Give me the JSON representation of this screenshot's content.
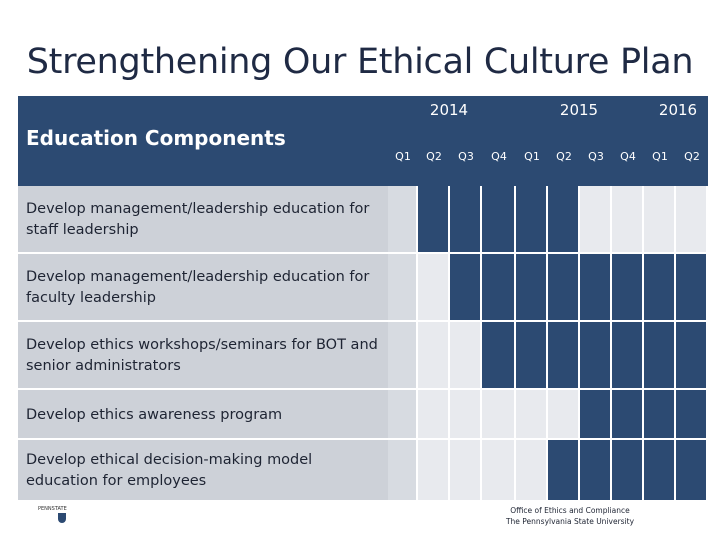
{
  "title": "Strengthening Our Ethical Culture Plan",
  "table": {
    "header_label": "Education Components",
    "years": [
      "2014",
      "2015",
      "2016"
    ],
    "quarters": [
      "Q1",
      "Q2",
      "Q3",
      "Q4",
      "Q1",
      "Q2",
      "Q3",
      "Q4",
      "Q1",
      "Q2"
    ],
    "rows": [
      {
        "label": "Develop management/leadership education for staff leadership",
        "active": [
          false,
          true,
          true,
          true,
          true,
          true,
          false,
          false,
          false,
          false
        ]
      },
      {
        "label": "Develop management/leadership education for faculty leadership",
        "active": [
          false,
          false,
          true,
          true,
          true,
          true,
          true,
          true,
          true,
          true
        ]
      },
      {
        "label": "Develop ethics workshops/seminars for BOT and senior administrators",
        "active": [
          false,
          false,
          false,
          true,
          true,
          true,
          true,
          true,
          true,
          true
        ]
      },
      {
        "label": "Develop ethics awareness program",
        "active": [
          false,
          false,
          false,
          false,
          false,
          false,
          true,
          true,
          true,
          true
        ]
      },
      {
        "label": "Develop ethical decision-making model education for employees",
        "active": [
          false,
          false,
          false,
          false,
          false,
          true,
          true,
          true,
          true,
          true
        ]
      }
    ]
  },
  "colors": {
    "accent": "#2c4a72",
    "row_bg": "#cdd1d8",
    "empty": "#e8eaee"
  },
  "footer": {
    "logo_text": "PENNSTATE",
    "office_line1": "Office of Ethics and Compliance",
    "office_line2": "The Pennsylvania State University"
  }
}
